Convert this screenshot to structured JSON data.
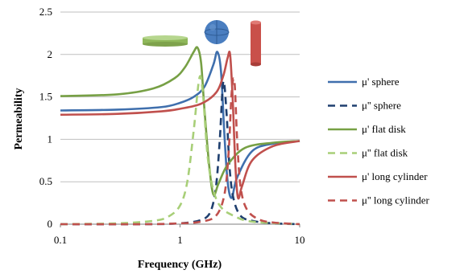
{
  "chart_data": {
    "type": "line",
    "xlabel": "Frequency (GHz)",
    "ylabel": "Permeability",
    "xscale": "log",
    "xlim": [
      0.1,
      10
    ],
    "ylim": [
      0,
      2.5
    ],
    "xticks": [
      {
        "value": 0.1,
        "label": "0.1"
      },
      {
        "value": 1,
        "label": "1"
      },
      {
        "value": 10,
        "label": "10"
      }
    ],
    "yticks": [
      {
        "value": 0,
        "label": "0"
      },
      {
        "value": 0.5,
        "label": "0.5"
      },
      {
        "value": 1,
        "label": "1"
      },
      {
        "value": 1.5,
        "label": "1.5"
      },
      {
        "value": 2,
        "label": "2"
      },
      {
        "value": 2.5,
        "label": "2.5"
      }
    ],
    "grid": "horizontal",
    "legend_position": "right",
    "series": [
      {
        "name": "μ' sphere",
        "color": "#3f6fad",
        "dash": "solid",
        "x": [
          0.1,
          0.3,
          0.7,
          1.0,
          1.3,
          1.6,
          1.9,
          2.05,
          2.2,
          2.35,
          2.5,
          2.7,
          3.0,
          4.0,
          6.0,
          10
        ],
        "y": [
          1.34,
          1.35,
          1.38,
          1.43,
          1.5,
          1.62,
          1.88,
          2.03,
          1.8,
          1.05,
          0.5,
          0.31,
          0.55,
          0.86,
          0.95,
          0.98
        ]
      },
      {
        "name": "μ'' sphere",
        "color": "#1f3f6f",
        "dash": "dashed",
        "x": [
          0.1,
          0.5,
          1.0,
          1.5,
          1.8,
          2.0,
          2.15,
          2.3,
          2.45,
          2.6,
          2.8,
          3.2,
          4.0,
          6.0,
          10
        ],
        "y": [
          0.0,
          0.0,
          0.01,
          0.05,
          0.15,
          0.45,
          1.0,
          1.68,
          1.3,
          0.65,
          0.3,
          0.1,
          0.04,
          0.01,
          0.0
        ]
      },
      {
        "name": "μ' flat disk",
        "color": "#77a045",
        "dash": "solid",
        "x": [
          0.1,
          0.3,
          0.6,
          0.9,
          1.1,
          1.3,
          1.4,
          1.5,
          1.6,
          1.75,
          1.9,
          2.1,
          2.5,
          3.5,
          6.0,
          10
        ],
        "y": [
          1.51,
          1.53,
          1.6,
          1.72,
          1.85,
          2.03,
          2.08,
          1.9,
          1.35,
          0.7,
          0.35,
          0.48,
          0.7,
          0.9,
          0.96,
          0.98
        ]
      },
      {
        "name": "μ'' flat disk",
        "color": "#a8cf78",
        "dash": "dashed",
        "x": [
          0.1,
          0.3,
          0.6,
          0.8,
          1.0,
          1.15,
          1.3,
          1.45,
          1.55,
          1.7,
          1.9,
          2.2,
          2.8,
          4.0,
          10
        ],
        "y": [
          0.0,
          0.01,
          0.04,
          0.09,
          0.22,
          0.5,
          1.1,
          1.72,
          1.55,
          0.8,
          0.4,
          0.2,
          0.1,
          0.03,
          0.0
        ]
      },
      {
        "name": "μ' long cylinder",
        "color": "#c0504d",
        "dash": "solid",
        "x": [
          0.1,
          0.3,
          0.7,
          1.0,
          1.5,
          2.0,
          2.3,
          2.5,
          2.62,
          2.75,
          2.9,
          3.05,
          3.3,
          4.0,
          6.0,
          10
        ],
        "y": [
          1.29,
          1.3,
          1.33,
          1.36,
          1.42,
          1.55,
          1.75,
          1.96,
          2.0,
          1.5,
          0.7,
          0.31,
          0.45,
          0.75,
          0.92,
          0.98
        ]
      },
      {
        "name": "μ'' long cylinder",
        "color": "#c0504d",
        "dash": "dashed",
        "x": [
          0.1,
          0.5,
          1.0,
          1.5,
          2.0,
          2.35,
          2.55,
          2.7,
          2.85,
          3.0,
          3.2,
          3.6,
          4.5,
          6.0,
          10
        ],
        "y": [
          0.0,
          0.0,
          0.01,
          0.03,
          0.1,
          0.35,
          0.85,
          1.55,
          1.68,
          1.0,
          0.45,
          0.18,
          0.06,
          0.02,
          0.0
        ]
      }
    ],
    "shape_icons": [
      {
        "name": "flat-disk-shape",
        "color": "#9bc26b"
      },
      {
        "name": "sphere-shape",
        "color": "#4a7ec0"
      },
      {
        "name": "long-cylinder-shape",
        "color": "#c9504a"
      }
    ]
  }
}
